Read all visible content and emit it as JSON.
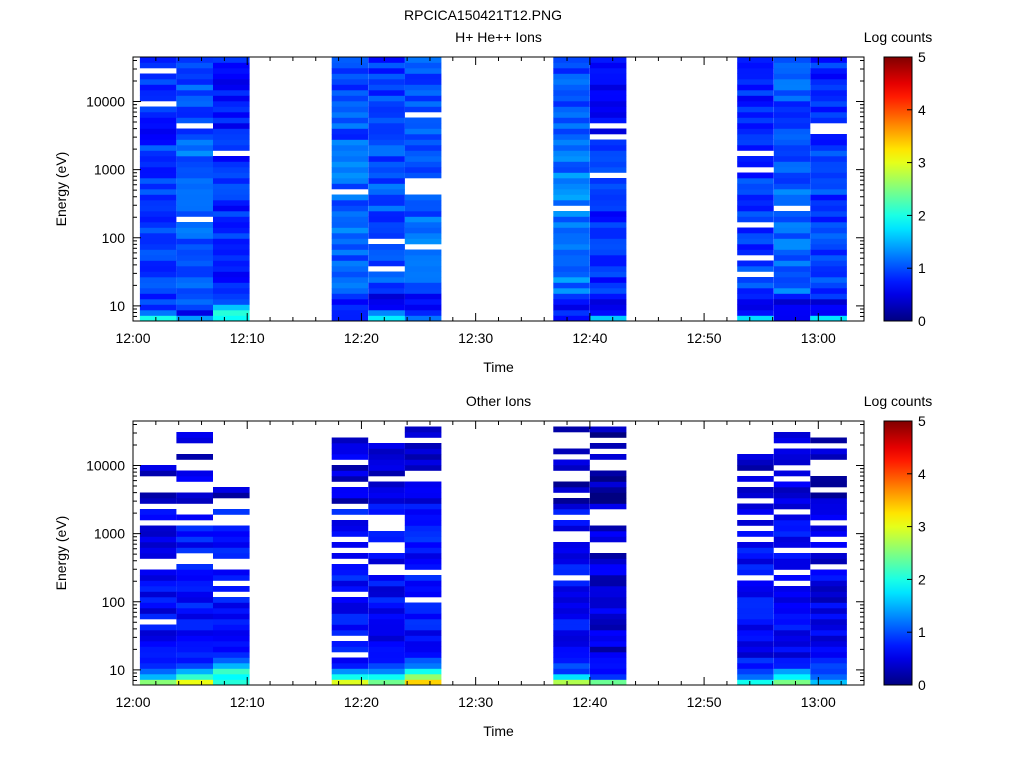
{
  "figure_title": "RPCICA150421T12.PNG",
  "chart_data": [
    {
      "type": "heatmap",
      "title": "H+ He++ Ions",
      "xlabel": "Time",
      "ylabel": "Energy (eV)",
      "x_ticks": [
        "12:00",
        "12:10",
        "12:20",
        "12:30",
        "12:40",
        "12:50",
        "13:00"
      ],
      "x_range_minutes": [
        0,
        64
      ],
      "y_scale": "log",
      "y_range": [
        6,
        45000
      ],
      "y_ticks": [
        10,
        100,
        1000,
        10000
      ],
      "y_tick_labels": [
        "10",
        "100",
        "1000",
        "10000"
      ],
      "colorbar": {
        "title": "Log counts",
        "range": [
          0,
          5
        ],
        "ticks": [
          0,
          1,
          2,
          3,
          4,
          5
        ],
        "tick_labels": [
          "0",
          "1",
          "2",
          "3",
          "4",
          "5"
        ]
      },
      "time_columns_minutes": [
        [
          0.6,
          3.8
        ],
        [
          3.8,
          7.0
        ],
        [
          7.0,
          10.2
        ],
        [
          17.4,
          20.6
        ],
        [
          20.6,
          23.8
        ],
        [
          23.8,
          27.0
        ],
        [
          36.8,
          40.0
        ],
        [
          40.0,
          43.2
        ],
        [
          52.9,
          56.1
        ],
        [
          56.1,
          59.3
        ],
        [
          59.3,
          62.5
        ]
      ],
      "columns": [
        {
          "low_energy_log_counts": [
            1.9,
            1.3,
            0.7,
            0.8,
            0.6
          ],
          "mid_log_counts": 0.9,
          "high_log_counts": 0.8
        },
        {
          "low_energy_log_counts": [
            1.3,
            0.6,
            0.8,
            0.9,
            1.0
          ],
          "mid_log_counts": 1.1,
          "high_log_counts": 1.0
        },
        {
          "low_energy_log_counts": [
            2.0,
            1.9,
            1.7,
            1.0,
            0.8
          ],
          "mid_log_counts": 0.8,
          "high_log_counts": 0.7
        },
        {
          "low_energy_log_counts": [
            1.0,
            0.9,
            0.7,
            0.6,
            0.8
          ],
          "mid_log_counts": 1.1,
          "high_log_counts": 1.0
        },
        {
          "low_energy_log_counts": [
            1.9,
            1.4,
            0.8,
            0.7,
            0.6
          ],
          "mid_log_counts": 1.0,
          "high_log_counts": 0.9
        },
        {
          "low_energy_log_counts": [
            1.3,
            0.6,
            0.7,
            0.5,
            0.6
          ],
          "mid_log_counts": 1.1,
          "high_log_counts": 1.0
        },
        {
          "low_energy_log_counts": [
            0.8,
            0.7,
            0.6,
            0.5,
            0.8
          ],
          "mid_log_counts": 1.2,
          "high_log_counts": 1.0
        },
        {
          "low_energy_log_counts": [
            1.6,
            0.7,
            0.6,
            0.6,
            0.7
          ],
          "mid_log_counts": 0.8,
          "high_log_counts": 0.7
        },
        {
          "low_energy_log_counts": [
            1.8,
            0.8,
            0.6,
            0.5,
            0.6
          ],
          "mid_log_counts": 0.9,
          "high_log_counts": 0.8
        },
        {
          "low_energy_log_counts": [
            0.8,
            0.5,
            0.4,
            0.5,
            0.7
          ],
          "mid_log_counts": 1.1,
          "high_log_counts": 1.0
        },
        {
          "low_energy_log_counts": [
            1.7,
            0.8,
            0.6,
            0.5,
            0.7
          ],
          "mid_log_counts": 0.9,
          "high_log_counts": 0.8
        }
      ]
    },
    {
      "type": "heatmap",
      "title": "Other Ions",
      "xlabel": "Time",
      "ylabel": "Energy (eV)",
      "x_ticks": [
        "12:00",
        "12:10",
        "12:20",
        "12:30",
        "12:40",
        "12:50",
        "13:00"
      ],
      "x_range_minutes": [
        0,
        64
      ],
      "y_scale": "log",
      "y_range": [
        6,
        45000
      ],
      "y_ticks": [
        10,
        100,
        1000,
        10000
      ],
      "y_tick_labels": [
        "10",
        "100",
        "1000",
        "10000"
      ],
      "colorbar": {
        "title": "Log counts",
        "range": [
          0,
          5
        ],
        "ticks": [
          0,
          1,
          2,
          3,
          4,
          5
        ],
        "tick_labels": [
          "0",
          "1",
          "2",
          "3",
          "4",
          "5"
        ]
      },
      "time_columns_minutes": [
        [
          0.6,
          3.8
        ],
        [
          3.8,
          7.0
        ],
        [
          7.0,
          10.2
        ],
        [
          17.4,
          20.6
        ],
        [
          20.6,
          23.8
        ],
        [
          23.8,
          27.0
        ],
        [
          36.8,
          40.0
        ],
        [
          40.0,
          43.2
        ],
        [
          52.9,
          56.1
        ],
        [
          56.1,
          59.3
        ],
        [
          59.3,
          62.5
        ]
      ],
      "columns": [
        {
          "low_energy_log_counts": [
            2.4,
            1.5,
            1.1,
            0.9,
            0.7
          ],
          "mid_log_counts": 0.6,
          "high_log_counts": 0.3,
          "top_energy_eV": 11000
        },
        {
          "low_energy_log_counts": [
            2.8,
            1.9,
            1.3,
            1.0,
            0.8
          ],
          "mid_log_counts": 0.7,
          "high_log_counts": 0.4,
          "top_energy_eV": 33000
        },
        {
          "low_energy_log_counts": [
            2.3,
            2.0,
            2.2,
            1.3,
            1.0
          ],
          "mid_log_counts": 0.7,
          "high_log_counts": 0.3,
          "top_energy_eV": 4500
        },
        {
          "low_energy_log_counts": [
            2.8,
            2.0,
            1.2,
            0.9,
            0.8
          ],
          "mid_log_counts": 0.7,
          "high_log_counts": 0.4,
          "top_energy_eV": 33000
        },
        {
          "low_energy_log_counts": [
            2.4,
            2.1,
            1.3,
            1.0,
            0.8
          ],
          "mid_log_counts": 0.6,
          "high_log_counts": 0.4,
          "top_energy_eV": 22000
        },
        {
          "low_energy_log_counts": [
            3.2,
            2.7,
            1.8,
            1.1,
            0.9
          ],
          "mid_log_counts": 0.7,
          "high_log_counts": 0.4,
          "top_energy_eV": 40000
        },
        {
          "low_energy_log_counts": [
            2.8,
            1.5,
            1.1,
            0.9,
            0.8
          ],
          "mid_log_counts": 0.6,
          "high_log_counts": 0.3,
          "top_energy_eV": 40000
        },
        {
          "low_energy_log_counts": [
            2.3,
            1.1,
            0.8,
            0.6,
            0.6
          ],
          "mid_log_counts": 0.4,
          "high_log_counts": 0.2,
          "top_energy_eV": 35000
        },
        {
          "low_energy_log_counts": [
            2.2,
            1.2,
            1.0,
            0.9,
            0.7
          ],
          "mid_log_counts": 0.6,
          "high_log_counts": 0.3,
          "top_energy_eV": 15000
        },
        {
          "low_energy_log_counts": [
            2.7,
            1.6,
            1.3,
            1.0,
            0.8
          ],
          "mid_log_counts": 0.6,
          "high_log_counts": 0.4,
          "top_energy_eV": 40000
        },
        {
          "low_energy_log_counts": [
            1.7,
            1.3,
            1.0,
            0.8,
            0.7
          ],
          "mid_log_counts": 0.5,
          "high_log_counts": 0.3,
          "top_energy_eV": 27000
        }
      ]
    }
  ]
}
